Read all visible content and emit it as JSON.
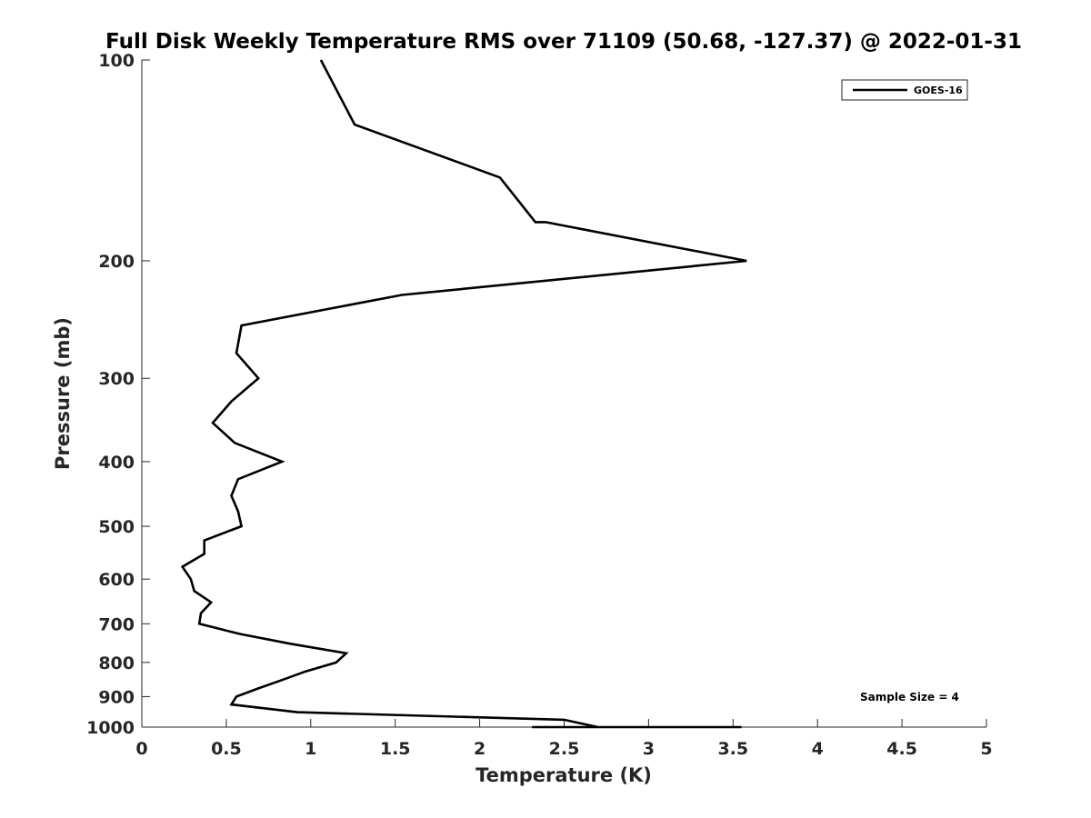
{
  "chart_data": {
    "type": "line",
    "title": "Full Disk Weekly Temperature RMS over 71109 (50.68, -127.37) @ 2022-01-31",
    "xlabel": "Temperature (K)",
    "ylabel": "Pressure (mb)",
    "xlim": [
      0,
      5
    ],
    "ylim": [
      100,
      1000
    ],
    "yscale": "log",
    "y_reversed": true,
    "grid": false,
    "x_ticks": [
      0,
      0.5,
      1,
      1.5,
      2,
      2.5,
      3,
      3.5,
      4,
      4.5,
      5
    ],
    "x_tick_labels": [
      "0",
      "0.5",
      "1",
      "1.5",
      "2",
      "2.5",
      "3",
      "3.5",
      "4",
      "4.5",
      "5"
    ],
    "y_ticks": [
      100,
      200,
      300,
      400,
      500,
      600,
      700,
      800,
      900,
      1000
    ],
    "y_tick_labels": [
      "100",
      "200",
      "300",
      "400",
      "500",
      "600",
      "700",
      "800",
      "900",
      "1000"
    ],
    "legend": {
      "placement": "top-right",
      "entries": [
        "GOES-16"
      ]
    },
    "annotation": "Sample Size = 4",
    "series": [
      {
        "name": "GOES-16",
        "color": "#000000",
        "points": [
          [
            1.06,
            100
          ],
          [
            1.26,
            125
          ],
          [
            2.12,
            150
          ],
          [
            2.33,
            175
          ],
          [
            2.39,
            175
          ],
          [
            3.58,
            200
          ],
          [
            1.54,
            225
          ],
          [
            0.59,
            250
          ],
          [
            0.56,
            275
          ],
          [
            0.69,
            300
          ],
          [
            0.53,
            325
          ],
          [
            0.42,
            350
          ],
          [
            0.55,
            375
          ],
          [
            0.83,
            400
          ],
          [
            0.57,
            425
          ],
          [
            0.53,
            450
          ],
          [
            0.57,
            475
          ],
          [
            0.59,
            500
          ],
          [
            0.37,
            525
          ],
          [
            0.37,
            550
          ],
          [
            0.24,
            575
          ],
          [
            0.29,
            600
          ],
          [
            0.31,
            625
          ],
          [
            0.41,
            650
          ],
          [
            0.35,
            675
          ],
          [
            0.34,
            700
          ],
          [
            0.58,
            725
          ],
          [
            0.88,
            750
          ],
          [
            1.21,
            775
          ],
          [
            1.15,
            800
          ],
          [
            0.97,
            825
          ],
          [
            0.83,
            850
          ],
          [
            0.69,
            875
          ],
          [
            0.56,
            900
          ],
          [
            0.53,
            925
          ],
          [
            0.92,
            950
          ],
          [
            2.5,
            975
          ],
          [
            2.7,
            1000
          ],
          [
            3.55,
            1000
          ],
          [
            2.98,
            1000
          ],
          [
            2.5,
            1000
          ],
          [
            2.31,
            1000
          ],
          [
            2.68,
            1000
          ],
          [
            2.6,
            1000
          ]
        ]
      }
    ]
  }
}
